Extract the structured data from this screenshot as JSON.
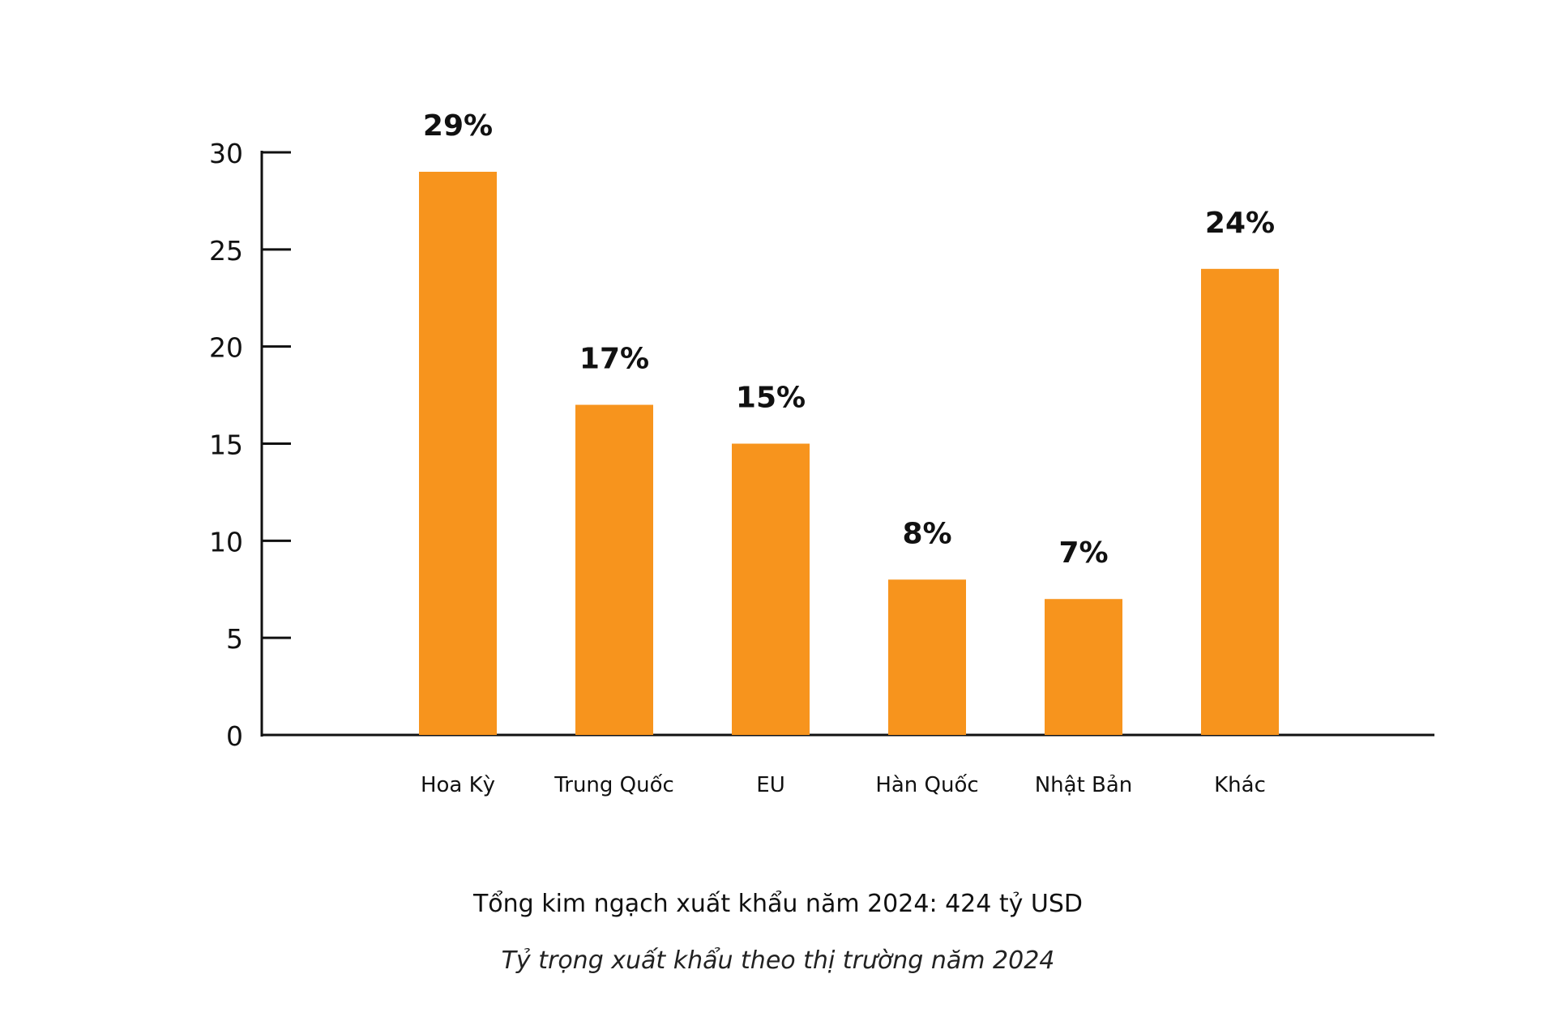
{
  "chart_data": {
    "type": "bar",
    "categories": [
      "Hoa Kỳ",
      "Trung Quốc",
      "EU",
      "Hàn Quốc",
      "Nhật Bản",
      "Khác"
    ],
    "values": [
      29,
      17,
      15,
      8,
      7,
      24
    ],
    "data_labels": [
      "29%",
      "17%",
      "15%",
      "8%",
      "7%",
      "24%"
    ],
    "yticks": [
      0,
      5,
      10,
      15,
      20,
      25,
      30
    ],
    "ylim": [
      0,
      30
    ],
    "grid": false,
    "bar_color": "#F7941D"
  },
  "captions": {
    "total": "Tổng kim ngạch xuất khẩu năm 2024: 424 tỷ USD",
    "subtitle": "Tỷ trọng xuất khẩu theo thị trường năm 2024"
  }
}
